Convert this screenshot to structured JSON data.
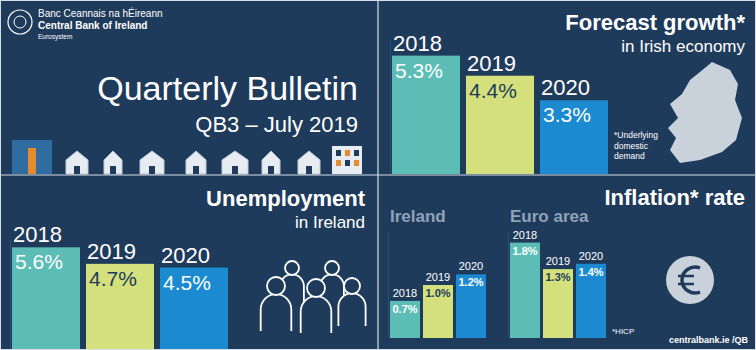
{
  "header": {
    "org_irish": "Banc Ceannais na hÉireann",
    "org": "Central Bank of Ireland",
    "eurosystem": "Eurosystem",
    "title": "Quarterly Bulletin",
    "subtitle": "QB3 – July 2019"
  },
  "footer": "centralbank.ie /QB",
  "chart_data": [
    {
      "type": "bar",
      "title": "Forecast growth*",
      "subtitle": "in Irish economy",
      "categories": [
        "2018",
        "2019",
        "2020"
      ],
      "values": [
        5.3,
        4.4,
        3.3
      ],
      "value_labels": [
        "5.3%",
        "4.4%",
        "3.3%"
      ],
      "colors": [
        "#5bbdb5",
        "#d3e07c",
        "#1b8ad0"
      ],
      "ylim": [
        0,
        6
      ],
      "data_labels": true,
      "tick_labels": "x",
      "annotation": "*Underlying domestic demand"
    },
    {
      "type": "bar",
      "title": "Unemployment",
      "subtitle": "in Ireland",
      "categories": [
        "2018",
        "2019",
        "2020"
      ],
      "values": [
        5.6,
        4.7,
        4.5
      ],
      "value_labels": [
        "5.6%",
        "4.7%",
        "4.5%"
      ],
      "colors": [
        "#5bbdb5",
        "#d3e07c",
        "#1b8ad0"
      ],
      "ylim": [
        0,
        6
      ],
      "data_labels": true,
      "tick_labels": "x"
    },
    {
      "type": "bar",
      "title": "Inflation* rate",
      "categories": [
        "2018",
        "2019",
        "2020"
      ],
      "series": [
        {
          "name": "Ireland",
          "values": [
            0.7,
            1.0,
            1.2
          ],
          "value_labels": [
            "0.7%",
            "1.0%",
            "1.2%"
          ]
        },
        {
          "name": "Euro area",
          "values": [
            1.8,
            1.3,
            1.4
          ],
          "value_labels": [
            "1.8%",
            "1.3%",
            "1.4%"
          ]
        }
      ],
      "colors": [
        "#5bbdb5",
        "#d3e07c",
        "#1b8ad0"
      ],
      "ylim": [
        0,
        2
      ],
      "data_labels": true,
      "tick_labels": "x",
      "annotation": "*HICP"
    }
  ]
}
